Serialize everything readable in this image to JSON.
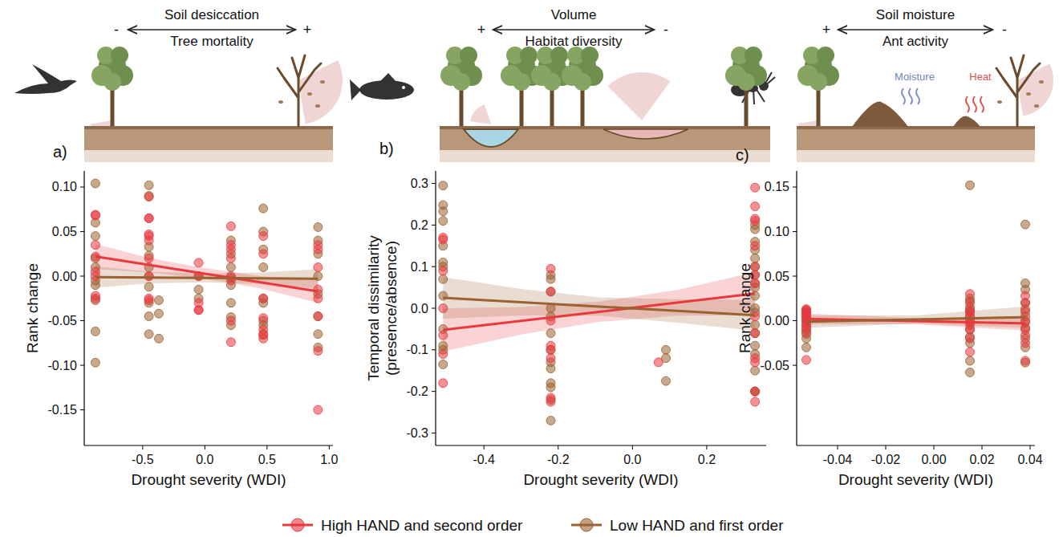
{
  "chart_data": [
    {
      "type": "scatter",
      "panel_label": "a)",
      "header": {
        "top": "Soil desiccation",
        "bottom": "Tree mortality",
        "left": "-",
        "right": "+"
      },
      "x_label": "Drought severity (WDI)",
      "y_label": "Rank change",
      "xlim": [
        -0.97,
        1.03
      ],
      "ylim": [
        -0.19,
        0.118
      ],
      "xticks": [
        -0.5,
        {
          "value": 0,
          "label": "0.0"
        },
        0.5,
        {
          "value": 1,
          "label": "1.0"
        }
      ],
      "yticks": [
        {
          "value": 0.1,
          "label": "0.10"
        },
        0.05,
        {
          "value": 0,
          "label": "0.00"
        },
        -0.05,
        {
          "value": -0.1,
          "label": "-0.10"
        },
        -0.15
      ],
      "grid": false,
      "legend": "bottom",
      "series": [
        {
          "name": "High HAND and second order",
          "color": "#e8393e",
          "marker": "circle",
          "x": [
            -0.88,
            -0.88,
            -0.88,
            -0.88,
            -0.88,
            -0.88,
            -0.88,
            -0.88,
            -0.45,
            -0.45,
            -0.45,
            -0.45,
            -0.45,
            -0.45,
            -0.45,
            -0.45,
            -0.45,
            -0.45,
            -0.05,
            -0.05,
            -0.05,
            -0.05,
            -0.05,
            0.21,
            0.21,
            0.21,
            0.21,
            0.21,
            0.21,
            0.21,
            0.21,
            0.47,
            0.47,
            0.47,
            0.47,
            0.47,
            0.47,
            0.47,
            0.91,
            0.91,
            0.91,
            0.91,
            0.91,
            0.91,
            0.91,
            0.91
          ],
          "values": [
            0.069,
            0.068,
            0.035,
            0.022,
            0.005,
            0.0,
            -0.022,
            -0.025,
            0.089,
            0.065,
            0.065,
            0.047,
            0.045,
            0.04,
            0.02,
            0.0,
            -0.027,
            -0.025,
            -0.03,
            -0.038,
            -0.038,
            0.0,
            0.015,
            0.056,
            0.035,
            0.03,
            0.02,
            0.0,
            -0.005,
            -0.05,
            -0.074,
            0.045,
            0.025,
            -0.025,
            -0.047,
            -0.06,
            -0.065,
            -0.07,
            0.035,
            0.03,
            0.01,
            -0.015,
            -0.025,
            -0.045,
            -0.084,
            -0.15
          ],
          "trend": {
            "x": [
              -0.88,
              -0.44,
              0.0,
              0.45,
              0.91
            ],
            "y": [
              0.022,
              0.0124,
              0.0028,
              -0.007,
              -0.017
            ],
            "lower": [
              0.008,
              0.004,
              -0.003,
              -0.014,
              -0.03
            ],
            "upper": [
              0.036,
              0.02,
              0.009,
              0.0,
              -0.004
            ]
          }
        },
        {
          "name": "Low HAND and first order",
          "color": "#9a6232",
          "marker": "circle",
          "x": [
            -0.88,
            -0.88,
            -0.88,
            -0.88,
            -0.88,
            -0.88,
            -0.88,
            -0.88,
            -0.88,
            -0.88,
            -0.45,
            -0.45,
            -0.45,
            -0.45,
            -0.45,
            -0.45,
            -0.45,
            -0.45,
            -0.45,
            -0.45,
            -0.37,
            -0.37,
            -0.37,
            -0.05,
            -0.05,
            -0.05,
            0.21,
            0.21,
            0.21,
            0.21,
            0.21,
            0.21,
            0.21,
            0.21,
            0.47,
            0.47,
            0.47,
            0.47,
            0.47,
            0.47,
            0.47,
            0.47,
            0.47,
            0.91,
            0.91,
            0.91,
            0.91,
            0.91,
            0.91,
            0.91,
            0.91
          ],
          "values": [
            0.104,
            0.06,
            0.045,
            0.02,
            0.01,
            -0.005,
            -0.01,
            -0.027,
            -0.062,
            -0.097,
            0.102,
            0.09,
            0.033,
            0.023,
            0.01,
            0.0,
            -0.012,
            -0.03,
            -0.045,
            -0.065,
            -0.027,
            -0.042,
            -0.07,
            -0.015,
            -0.025,
            0.0,
            0.04,
            0.025,
            0.01,
            -0.002,
            -0.01,
            -0.03,
            -0.046,
            -0.055,
            0.076,
            0.05,
            0.03,
            0.01,
            -0.025,
            -0.03,
            -0.05,
            -0.055,
            -0.066,
            0.055,
            0.04,
            0.025,
            0.0,
            -0.02,
            -0.045,
            -0.065,
            -0.08
          ],
          "trend": {
            "x": [
              -0.88,
              -0.44,
              0.0,
              0.45,
              0.91
            ],
            "y": [
              -0.001,
              -0.0015,
              -0.002,
              -0.0025,
              -0.003
            ],
            "lower": [
              -0.013,
              -0.008,
              -0.007,
              -0.009,
              -0.014
            ],
            "upper": [
              0.011,
              0.005,
              0.003,
              0.004,
              0.008
            ]
          }
        }
      ]
    },
    {
      "type": "scatter",
      "panel_label": "b)",
      "header": {
        "top": "Volume",
        "bottom": "Habitat diversity",
        "left": "+",
        "right": "-"
      },
      "x_label": "Drought severity (WDI)",
      "y_label": "Temporal dissimilarity\n(presence/absence)",
      "xlim": [
        -0.53,
        0.36
      ],
      "ylim": [
        -0.33,
        0.33
      ],
      "xticks": [
        -0.4,
        -0.2,
        {
          "value": 0,
          "label": "0.0"
        },
        0.2
      ],
      "yticks": [
        0.3,
        0.2,
        0.1,
        {
          "value": 0,
          "label": "0.0"
        },
        -0.1,
        -0.2,
        -0.3
      ],
      "grid": false,
      "series": [
        {
          "name": "High HAND and second order",
          "color": "#e8393e",
          "marker": "circle",
          "x": [
            -0.51,
            -0.51,
            -0.51,
            -0.51,
            -0.51,
            -0.51,
            -0.51,
            -0.22,
            -0.22,
            -0.22,
            -0.22,
            -0.22,
            -0.22,
            -0.22,
            -0.22,
            0.07,
            0.33,
            0.33,
            0.33,
            0.33,
            0.33,
            0.33,
            0.33,
            0.33,
            0.33,
            0.33,
            0.33,
            0.33,
            0.33,
            0.33
          ],
          "values": [
            0.165,
            0.17,
            0.09,
            0.0,
            -0.065,
            -0.18,
            -0.11,
            0.095,
            0.04,
            -0.03,
            -0.1,
            -0.12,
            -0.215,
            -0.225,
            -0.09,
            -0.13,
            0.29,
            0.245,
            0.215,
            0.21,
            0.15,
            0.1,
            0.08,
            0.06,
            -0.02,
            -0.06,
            -0.12,
            -0.13,
            -0.2,
            -0.225
          ],
          "trend": {
            "x": [
              -0.51,
              -0.3,
              -0.09,
              0.12,
              0.33
            ],
            "y": [
              -0.052,
              -0.0302,
              -0.0085,
              0.0133,
              0.035
            ],
            "lower": [
              -0.104,
              -0.063,
              -0.033,
              -0.018,
              -0.017
            ],
            "upper": [
              0.0,
              0.003,
              0.016,
              0.044,
              0.087
            ]
          }
        },
        {
          "name": "Low HAND and first order",
          "color": "#9a6232",
          "marker": "circle",
          "x": [
            -0.51,
            -0.51,
            -0.51,
            -0.51,
            -0.51,
            -0.51,
            -0.51,
            -0.51,
            -0.51,
            -0.51,
            -0.51,
            -0.51,
            -0.51,
            -0.22,
            -0.22,
            -0.22,
            -0.22,
            -0.22,
            -0.22,
            -0.22,
            -0.22,
            -0.22,
            -0.22,
            -0.22,
            -0.22,
            -0.22,
            0.09,
            0.09,
            0.09,
            0.33,
            0.33,
            0.33,
            0.33,
            0.33,
            0.33,
            0.33,
            0.33,
            0.33,
            0.33,
            0.33,
            0.33,
            0.33,
            0.33,
            0.33,
            0.33,
            0.33,
            0.33,
            0.33
          ],
          "values": [
            0.295,
            0.248,
            0.233,
            0.21,
            0.15,
            0.11,
            0.1,
            0.07,
            0.03,
            -0.05,
            -0.09,
            -0.1,
            -0.135,
            0.08,
            0.07,
            0.04,
            0.0,
            -0.02,
            -0.06,
            -0.1,
            -0.13,
            -0.145,
            -0.18,
            -0.19,
            -0.22,
            -0.27,
            -0.1,
            -0.12,
            -0.175,
            0.2,
            0.19,
            0.16,
            0.14,
            0.12,
            0.1,
            0.08,
            0.06,
            0.05,
            0.03,
            0.0,
            -0.01,
            -0.04,
            -0.06,
            -0.09,
            -0.11,
            -0.15,
            -0.2,
            -0.2
          ],
          "trend": {
            "x": [
              -0.51,
              -0.3,
              -0.09,
              0.12,
              0.33
            ],
            "y": [
              0.025,
              0.0145,
              0.004,
              -0.0065,
              -0.017
            ],
            "lower": [
              -0.025,
              -0.0175,
              -0.018,
              -0.0345,
              -0.054
            ],
            "upper": [
              0.075,
              0.0465,
              0.026,
              0.0215,
              0.02
            ]
          }
        }
      ]
    },
    {
      "type": "scatter",
      "panel_label": "c)",
      "header": {
        "top": "Soil moisture",
        "bottom": "Ant activity",
        "left": "+",
        "right": "-"
      },
      "illustration_labels": [
        "Moisture",
        "Heat"
      ],
      "x_label": "Drought severity (WDI)",
      "y_label": "Rank change",
      "xlim": [
        -0.057,
        0.042
      ],
      "ylim": [
        -0.14,
        0.168
      ],
      "xticks": [
        -0.04,
        -0.02,
        {
          "value": 0,
          "label": "0.00"
        },
        0.02,
        0.04
      ],
      "yticks": [
        0.15,
        {
          "value": 0.1,
          "label": "0.10"
        },
        0.05,
        {
          "value": 0,
          "label": "0.00"
        },
        -0.05
      ],
      "grid": false,
      "series": [
        {
          "name": "High HAND and second order",
          "color": "#e8393e",
          "marker": "circle",
          "x": [
            -0.053,
            -0.053,
            -0.053,
            -0.053,
            -0.053,
            -0.053,
            -0.053,
            -0.053,
            -0.053,
            -0.053,
            -0.053,
            0.015,
            0.015,
            0.015,
            0.015,
            0.015,
            0.015,
            0.015,
            0.015,
            0.015,
            0.015,
            0.038,
            0.038,
            0.038,
            0.038,
            0.038,
            0.038,
            0.038,
            0.038
          ],
          "values": [
            0.013,
            0.011,
            0.01,
            0.008,
            0.005,
            0.003,
            0.0,
            -0.004,
            -0.008,
            -0.013,
            -0.044,
            0.03,
            0.02,
            0.012,
            0.01,
            0.005,
            0.0,
            -0.005,
            -0.01,
            -0.02,
            -0.035,
            0.028,
            0.02,
            0.01,
            0.0,
            -0.008,
            -0.016,
            -0.025,
            -0.045
          ],
          "trend": {
            "x": [
              -0.053,
              -0.0075,
              0.038
            ],
            "y": [
              0.002,
              -0.0005,
              -0.003
            ],
            "lower": [
              -0.004,
              -0.004,
              -0.011
            ],
            "upper": [
              0.008,
              0.003,
              0.005
            ]
          }
        },
        {
          "name": "Low HAND and first order",
          "color": "#9a6232",
          "marker": "circle",
          "x": [
            -0.053,
            -0.053,
            -0.053,
            -0.053,
            -0.053,
            -0.053,
            -0.053,
            -0.053,
            -0.053,
            0.015,
            0.015,
            0.015,
            0.015,
            0.015,
            0.015,
            0.015,
            0.015,
            0.015,
            0.015,
            0.015,
            0.015,
            0.038,
            0.038,
            0.038,
            0.038,
            0.038,
            0.038,
            0.038,
            0.038,
            0.038,
            0.038,
            0.038
          ],
          "values": [
            0.012,
            0.009,
            0.005,
            0.0,
            -0.005,
            -0.01,
            -0.015,
            -0.02,
            -0.03,
            0.152,
            0.025,
            0.022,
            0.015,
            0.01,
            0.005,
            -0.002,
            -0.01,
            -0.018,
            -0.025,
            -0.045,
            -0.058,
            0.108,
            0.042,
            0.035,
            0.02,
            0.013,
            0.005,
            -0.002,
            -0.01,
            -0.02,
            -0.03,
            -0.047
          ],
          "trend": {
            "x": [
              -0.053,
              -0.0075,
              0.038
            ],
            "y": [
              -0.001,
              0.0015,
              0.004
            ],
            "lower": [
              -0.008,
              -0.003,
              -0.008
            ],
            "upper": [
              0.006,
              0.006,
              0.016
            ]
          }
        }
      ]
    }
  ]
}
